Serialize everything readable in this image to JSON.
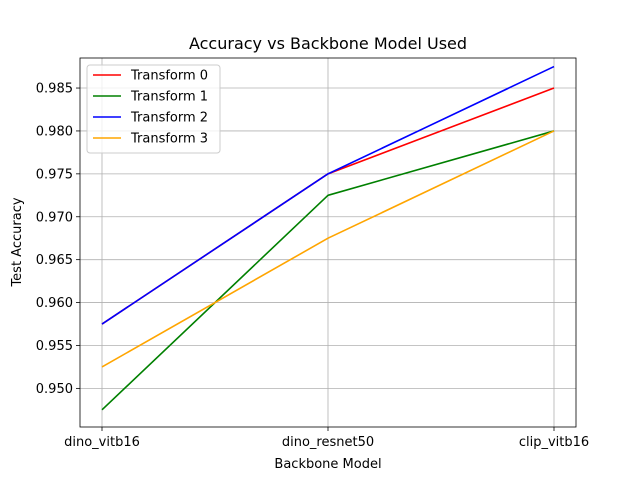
{
  "chart_data": {
    "type": "line",
    "title": "Accuracy vs Backbone Model Used",
    "xlabel": "Backbone Model",
    "ylabel": "Test Accuracy",
    "categories": [
      "dino_vitb16",
      "dino_resnet50",
      "clip_vitb16"
    ],
    "ylim": [
      0.9455,
      0.9885
    ],
    "yticks": [
      0.95,
      0.955,
      0.96,
      0.965,
      0.97,
      0.975,
      0.98,
      0.985
    ],
    "ytick_labels": [
      "0.950",
      "0.955",
      "0.960",
      "0.965",
      "0.970",
      "0.975",
      "0.980",
      "0.985"
    ],
    "grid": true,
    "legend_position": "top-left",
    "series": [
      {
        "name": "Transform 0",
        "color": "#ff0000",
        "values": [
          0.9575,
          0.975,
          0.985
        ]
      },
      {
        "name": "Transform 1",
        "color": "#008000",
        "values": [
          0.9475,
          0.9725,
          0.98
        ]
      },
      {
        "name": "Transform 2",
        "color": "#0000ff",
        "values": [
          0.9575,
          0.975,
          0.9875
        ]
      },
      {
        "name": "Transform 3",
        "color": "#ffa500",
        "values": [
          0.9525,
          0.9675,
          0.98
        ]
      }
    ]
  }
}
